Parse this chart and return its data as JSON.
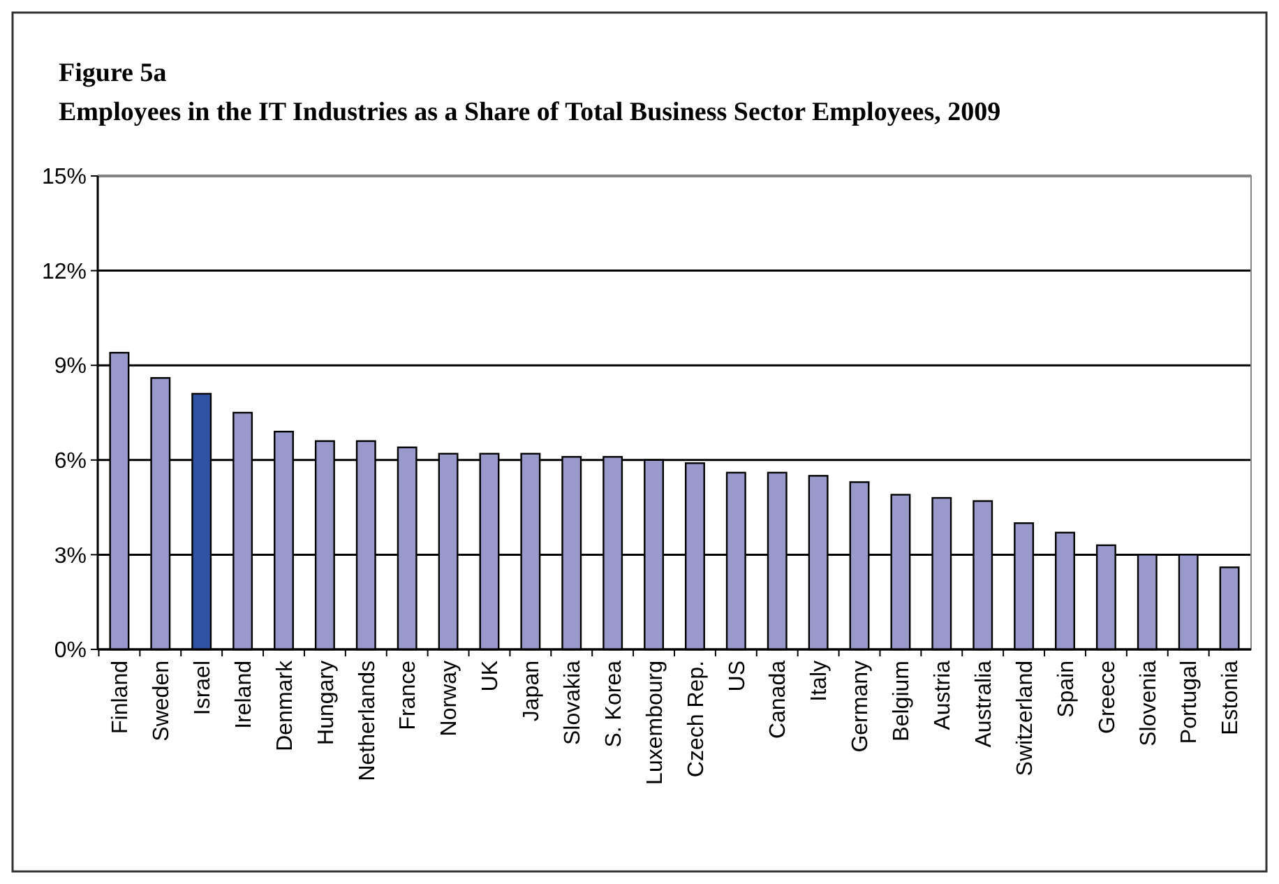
{
  "chart_data": {
    "type": "bar",
    "title": "Figure 5a",
    "subtitle": "Employees in the IT Industries as a Share of Total Business Sector Employees, 2009",
    "categories": [
      "Finland",
      "Sweden",
      "Israel",
      "Ireland",
      "Denmark",
      "Hungary",
      "Netherlands",
      "France",
      "Norway",
      "UK",
      "Japan",
      "Slovakia",
      "S. Korea",
      "Luxembourg",
      "Czech Rep.",
      "US",
      "Canada",
      "Italy",
      "Germany",
      "Belgium",
      "Austria",
      "Australia",
      "Switzerland",
      "Spain",
      "Greece",
      "Slovenia",
      "Portugal",
      "Estonia"
    ],
    "values": [
      9.4,
      8.6,
      8.1,
      7.5,
      6.9,
      6.6,
      6.6,
      6.4,
      6.2,
      6.2,
      6.2,
      6.1,
      6.1,
      6.0,
      5.9,
      5.6,
      5.6,
      5.5,
      5.3,
      4.9,
      4.8,
      4.7,
      4.0,
      3.7,
      3.3,
      3.0,
      3.0,
      2.6
    ],
    "colors": [
      "#9999cc",
      "#9999cc",
      "#3153a3",
      "#9999cc",
      "#9999cc",
      "#9999cc",
      "#9999cc",
      "#9999cc",
      "#9999cc",
      "#9999cc",
      "#9999cc",
      "#9999cc",
      "#9999cc",
      "#9999cc",
      "#9999cc",
      "#9999cc",
      "#9999cc",
      "#9999cc",
      "#9999cc",
      "#9999cc",
      "#9999cc",
      "#9999cc",
      "#9999cc",
      "#9999cc",
      "#9999cc",
      "#9999cc",
      "#9999cc",
      "#9999cc"
    ],
    "ylim": [
      0,
      15
    ],
    "yticks": [
      {
        "value": 0,
        "label": "0%"
      },
      {
        "value": 3,
        "label": "3%"
      },
      {
        "value": 6,
        "label": "6%"
      },
      {
        "value": 9,
        "label": "9%"
      },
      {
        "value": 12,
        "label": "12%"
      },
      {
        "value": 15,
        "label": "15%"
      }
    ],
    "grid": "y"
  }
}
